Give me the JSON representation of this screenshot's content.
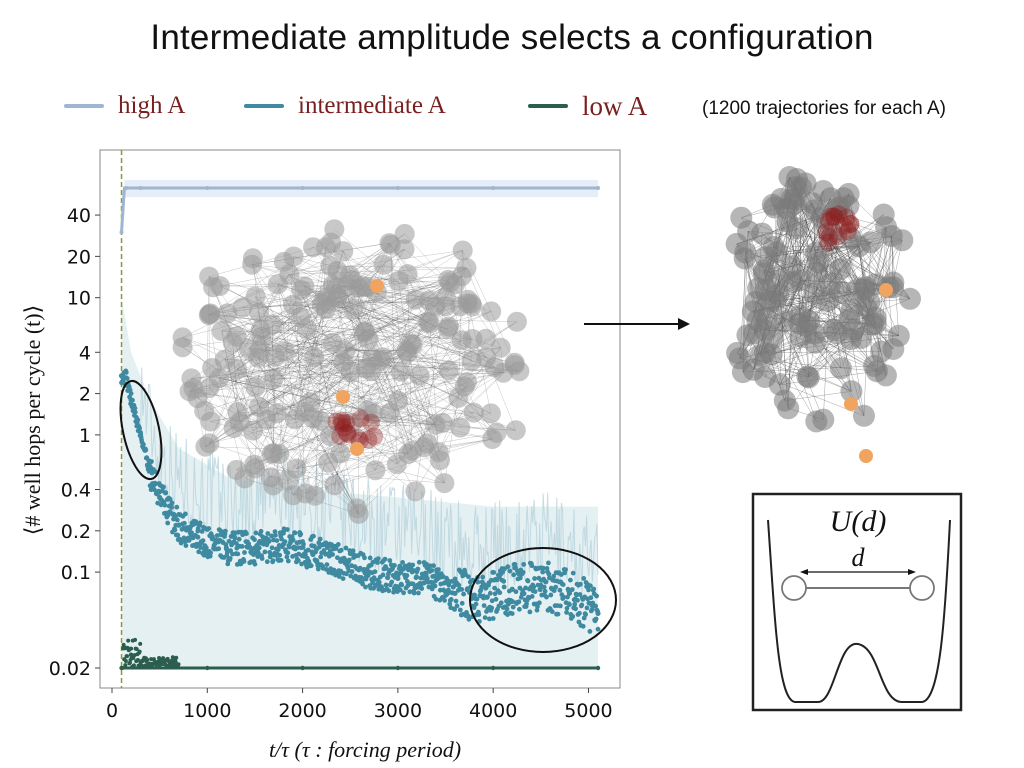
{
  "title": "Intermediate amplitude selects a configuration",
  "legend": {
    "items": [
      {
        "label": "high A",
        "color": "#9fb6d2"
      },
      {
        "label": "intermediate A",
        "color": "#3f8aa0"
      },
      {
        "label": "low A",
        "color": "#2c5e4e"
      }
    ],
    "note": "(1200 trajectories for each A)"
  },
  "chart_data": {
    "type": "scatter",
    "title": "Intermediate amplitude selects a configuration",
    "xlabel": "t/τ    (τ : forcing period)",
    "ylabel": "⟨# well hops per cycle (t)⟩",
    "yscale": "log",
    "xlim": [
      0,
      5100
    ],
    "ylim": [
      0.015,
      100
    ],
    "xticks": [
      0,
      1000,
      2000,
      3000,
      4000,
      5000
    ],
    "yticks": [
      0.02,
      0.1,
      0.2,
      0.4,
      1,
      2,
      4,
      10,
      20,
      40
    ],
    "vline_x": 100,
    "series": [
      {
        "name": "high A",
        "color": "#9fb6d2",
        "x": [
          100,
          150,
          300,
          1000,
          2000,
          3000,
          4000,
          5100
        ],
        "y": [
          30,
          63,
          63,
          63,
          63,
          63,
          63,
          63
        ]
      },
      {
        "name": "intermediate A",
        "color": "#3f8aa0",
        "x": [
          100,
          150,
          200,
          300,
          400,
          500,
          700,
          900,
          1200,
          1500,
          1800,
          2100,
          2400,
          2700,
          3000,
          3300,
          3600,
          3900,
          4200,
          4500,
          4800,
          5100
        ],
        "y": [
          2.7,
          2.6,
          1.8,
          1.0,
          0.55,
          0.35,
          0.22,
          0.18,
          0.15,
          0.15,
          0.16,
          0.14,
          0.12,
          0.1,
          0.09,
          0.09,
          0.07,
          0.065,
          0.075,
          0.08,
          0.07,
          0.05
        ]
      },
      {
        "name": "low A",
        "color": "#2c5e4e",
        "x": [
          100,
          150,
          200,
          300,
          500,
          1000,
          2000,
          3000,
          4000,
          5100
        ],
        "y": [
          0.02,
          0.028,
          0.025,
          0.022,
          0.021,
          0.02,
          0.02,
          0.02,
          0.02,
          0.02
        ]
      }
    ]
  },
  "inset_potential": {
    "label_u": "U(d)",
    "label_d": "d"
  }
}
